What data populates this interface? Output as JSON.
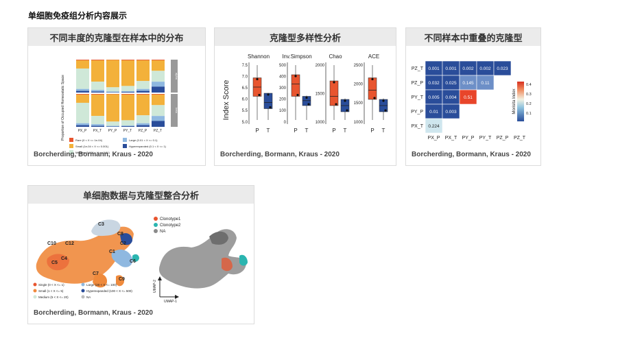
{
  "page_title": "单细胞免疫组分析内容展示",
  "colors": {
    "header_bg": "#ebebeb",
    "orange": "#e8552f",
    "blue": "#2a4d9a",
    "yellow": "#f3b13a",
    "teal": "#2bb5b0"
  },
  "cards": [
    {
      "title": "不同丰度的克隆型在样本中的分布",
      "footer": "Borcherding, Bormann, Kraus - 2020",
      "figure": {
        "ylabel": "Proportion of Occupied Homeostatic Space",
        "xlabels": [
          "PX_P",
          "PX_T",
          "PY_P",
          "PY_T",
          "PZ_P",
          "PZ_T"
        ],
        "facet_labels": [
          "alpha",
          "beta"
        ],
        "legend": [
          {
            "label": "Rare (0 < X <= 1e-04)",
            "color": "#e8552f"
          },
          {
            "label": "Small (1e-04 < X <= 0.001)",
            "color": "#f3b13a"
          },
          {
            "label": "Medium (0.001 < X <= 0.01)",
            "color": "#cfe8d8"
          },
          {
            "label": "Large (0.01 < X <= 0.1)",
            "color": "#8fb8e0"
          },
          {
            "label": "Hyperexpanded (0.1 < X <= 1)",
            "color": "#2a4d9a"
          }
        ]
      }
    },
    {
      "title": "克隆型多样性分析",
      "footer": "Borcherding, Bormann, Kraus - 2020",
      "figure": {
        "ylabel": "Index Score",
        "panels": [
          {
            "name": "Shannon",
            "ticks": [
              "7.5",
              "7.0",
              "6.5",
              "6.0",
              "5.5",
              "5.0"
            ]
          },
          {
            "name": "Inv.Simpson",
            "ticks": [
              "500",
              "400",
              "300",
              "200",
              "100",
              "0"
            ]
          },
          {
            "name": "Chao",
            "ticks": [
              "2000",
              "1500",
              "1000"
            ]
          },
          {
            "name": "ACE",
            "ticks": [
              "2500",
              "2000",
              "1500",
              "1000"
            ]
          }
        ],
        "groups": [
          "P",
          "T"
        ]
      }
    },
    {
      "title": "不同样本中重叠的克隆型",
      "footer": "Borcherding, Bormann, Kraus - 2020",
      "figure": {
        "rows": [
          "PZ_T",
          "PZ_P",
          "PY_T",
          "PY_P",
          "PX_T"
        ],
        "cols": [
          "PX_P",
          "PX_T",
          "PY_P",
          "PY_T",
          "PZ_P",
          "PZ_T"
        ],
        "cells": [
          [
            "0.001",
            "0.001",
            "0.002",
            "0.002",
            "0.023"
          ],
          [
            "0.032",
            "0.025",
            "0.145",
            "0.11"
          ],
          [
            "0.005",
            "0.004",
            "0.51"
          ],
          [
            "0.01",
            "0.003"
          ],
          [
            "0.224"
          ]
        ],
        "legend_title": "Morisita Index",
        "legend_ticks": [
          "0.4",
          "0.3",
          "0.2",
          "0.1"
        ]
      }
    },
    {
      "title": "单细胞数据与克隆型整合分析",
      "footer": "Borcherding, Bormann, Kraus - 2020",
      "figure": {
        "cluster_labels": [
          "C1",
          "C2",
          "C3",
          "C4",
          "C5",
          "C6",
          "C7",
          "C8",
          "C9",
          "C10",
          "C12"
        ],
        "clonotype_legend": [
          {
            "label": "Clonotype1",
            "color": "#e8552f"
          },
          {
            "label": "Clonotype2",
            "color": "#2bb5b0"
          },
          {
            "label": "NA",
            "color": "#8a8a8a"
          }
        ],
        "freq_legend": [
          {
            "label": "Single (0 < X <= 1)",
            "color": "#e8552f"
          },
          {
            "label": "Large (20 < X <= 100)",
            "color": "#8fb8e0"
          },
          {
            "label": "Small (1 < X <= 5)",
            "color": "#f08a3e"
          },
          {
            "label": "Hyperexpanded (100 < X <= 500)",
            "color": "#2a4d9a"
          },
          {
            "label": "Medium (5 < X <= 20)",
            "color": "#cfe8d8"
          },
          {
            "label": "NA",
            "color": "#bdbdbd"
          }
        ],
        "axis_x": "UMAP-1",
        "axis_y": "UMAP-2"
      }
    }
  ]
}
